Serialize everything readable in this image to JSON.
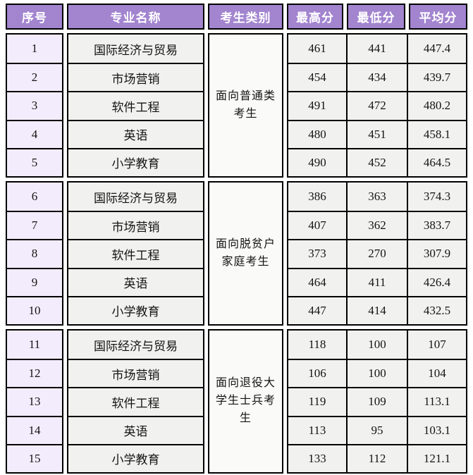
{
  "colors": {
    "header_bg": "#A284CF",
    "header_text": "#FFFFFF",
    "index_cell_bg": "#F3ECFC",
    "data_cell_bg": "#F1F1EF",
    "category_cell_bg": "#FAFAF8",
    "border": "#000000"
  },
  "table": {
    "headers": {
      "no": "序号",
      "major": "专业名称",
      "category": "考生类别",
      "max": "最高分",
      "min": "最低分",
      "avg": "平均分"
    },
    "blocks": [
      {
        "category": "面向普通类考生",
        "rows": [
          {
            "no": "1",
            "major": "国际经济与贸易",
            "max": "461",
            "min": "441",
            "avg": "447.4"
          },
          {
            "no": "2",
            "major": "市场营销",
            "max": "454",
            "min": "434",
            "avg": "439.7"
          },
          {
            "no": "3",
            "major": "软件工程",
            "max": "491",
            "min": "472",
            "avg": "480.2"
          },
          {
            "no": "4",
            "major": "英语",
            "max": "480",
            "min": "451",
            "avg": "458.1"
          },
          {
            "no": "5",
            "major": "小学教育",
            "max": "490",
            "min": "452",
            "avg": "464.5"
          }
        ]
      },
      {
        "category": "面向脱贫户家庭考生",
        "rows": [
          {
            "no": "6",
            "major": "国际经济与贸易",
            "max": "386",
            "min": "363",
            "avg": "374.3"
          },
          {
            "no": "7",
            "major": "市场营销",
            "max": "407",
            "min": "362",
            "avg": "383.7"
          },
          {
            "no": "8",
            "major": "软件工程",
            "max": "373",
            "min": "270",
            "avg": "307.9"
          },
          {
            "no": "9",
            "major": "英语",
            "max": "464",
            "min": "411",
            "avg": "426.4"
          },
          {
            "no": "10",
            "major": "小学教育",
            "max": "447",
            "min": "414",
            "avg": "432.5"
          }
        ]
      },
      {
        "category": "面向退役大学生士兵考生",
        "rows": [
          {
            "no": "11",
            "major": "国际经济与贸易",
            "max": "118",
            "min": "100",
            "avg": "107"
          },
          {
            "no": "12",
            "major": "市场营销",
            "max": "106",
            "min": "100",
            "avg": "104"
          },
          {
            "no": "13",
            "major": "软件工程",
            "max": "119",
            "min": "109",
            "avg": "113.1"
          },
          {
            "no": "14",
            "major": "英语",
            "max": "113",
            "min": "95",
            "avg": "103.1"
          },
          {
            "no": "15",
            "major": "小学教育",
            "max": "133",
            "min": "112",
            "avg": "121.1"
          }
        ]
      }
    ]
  }
}
